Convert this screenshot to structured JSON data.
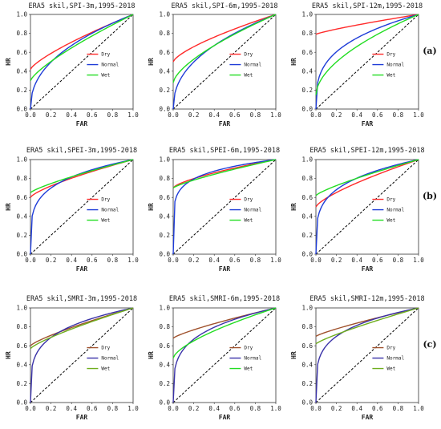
{
  "chart_data": [
    {
      "type": "line",
      "title": "ERA5 skil,SPI-3m,1995-2018",
      "xlabel": "FAR",
      "ylabel": "HR",
      "xlim": [
        0,
        1
      ],
      "ylim": [
        0,
        1
      ],
      "grid": false,
      "legend": "center-right",
      "series": [
        {
          "name": "Dry",
          "color": "#ff2a2a",
          "y0": 0.42,
          "k": 0.3
        },
        {
          "name": "Normal",
          "color": "#1e3cd8",
          "y0": 0.0,
          "k": 1.3
        },
        {
          "name": "Wet",
          "color": "#22dd22",
          "y0": 0.3,
          "k": 0.3
        }
      ]
    },
    {
      "type": "line",
      "title": "ERA5 skil,SPI-6m,1995-2018",
      "xlabel": "FAR",
      "ylabel": "HR",
      "xlim": [
        0,
        1
      ],
      "ylim": [
        0,
        1
      ],
      "grid": false,
      "legend": "center-right",
      "series": [
        {
          "name": "Dry",
          "color": "#ff2a2a",
          "y0": 0.5,
          "k": 0.4
        },
        {
          "name": "Normal",
          "color": "#1e3cd8",
          "y0": 0.0,
          "k": 1.3
        },
        {
          "name": "Wet",
          "color": "#22dd22",
          "y0": 0.28,
          "k": 0.5
        }
      ]
    },
    {
      "type": "line",
      "title": "ERA5 skil,SPI-12m,1995-2018",
      "xlabel": "FAR",
      "ylabel": "HR",
      "xlim": [
        0,
        1
      ],
      "ylim": [
        0,
        1
      ],
      "grid": false,
      "legend": "center-right",
      "series": [
        {
          "name": "Dry",
          "color": "#ff2a2a",
          "y0": 0.79,
          "k": 0.2
        },
        {
          "name": "Normal",
          "color": "#1e3cd8",
          "y0": 0.0,
          "k": 2.2
        },
        {
          "name": "Wet",
          "color": "#22dd22",
          "y0": 0.15,
          "k": 0.8
        }
      ]
    },
    {
      "type": "line",
      "title": "ERA5 skil,SPEI-3m,1995-2018",
      "xlabel": "FAR",
      "ylabel": "HR",
      "xlim": [
        0,
        1
      ],
      "ylim": [
        0,
        1
      ],
      "grid": false,
      "legend": "center-right",
      "series": [
        {
          "name": "Dry",
          "color": "#ff2a2a",
          "y0": 0.6,
          "k": 0.35
        },
        {
          "name": "Normal",
          "color": "#1e3cd8",
          "y0": 0.0,
          "k": 3.5
        },
        {
          "name": "Wet",
          "color": "#22dd22",
          "y0": 0.65,
          "k": 0.25
        }
      ]
    },
    {
      "type": "line",
      "title": "ERA5 skil,SPEI-6m,1995-2018",
      "xlabel": "FAR",
      "ylabel": "HR",
      "xlim": [
        0,
        1
      ],
      "ylim": [
        0,
        1
      ],
      "grid": false,
      "legend": "center-right",
      "series": [
        {
          "name": "Dry",
          "color": "#ff2a2a",
          "y0": 0.7,
          "k": 0.45
        },
        {
          "name": "Normal",
          "color": "#1e3cd8",
          "y0": 0.0,
          "k": 6.0
        },
        {
          "name": "Wet",
          "color": "#22dd22",
          "y0": 0.7,
          "k": 0.25
        }
      ]
    },
    {
      "type": "line",
      "title": "ERA5 skil,SPEI-12m,1995-2018",
      "xlabel": "FAR",
      "ylabel": "HR",
      "xlim": [
        0,
        1
      ],
      "ylim": [
        0,
        1
      ],
      "grid": false,
      "legend": "center-right",
      "series": [
        {
          "name": "Dry",
          "color": "#ff2a2a",
          "y0": 0.5,
          "k": 0.35
        },
        {
          "name": "Normal",
          "color": "#1e3cd8",
          "y0": 0.0,
          "k": 3.2
        },
        {
          "name": "Wet",
          "color": "#22dd22",
          "y0": 0.62,
          "k": 0.25
        }
      ]
    },
    {
      "type": "line",
      "title": "ERA5 skil,SMRI-3m,1995-2018",
      "xlabel": "FAR",
      "ylabel": "HR",
      "xlim": [
        0,
        1
      ],
      "ylim": [
        0,
        1
      ],
      "grid": false,
      "legend": "center-right",
      "series": [
        {
          "name": "Dry",
          "color": "#a0522d",
          "y0": 0.6,
          "k": 0.25
        },
        {
          "name": "Normal",
          "color": "#3a32a8",
          "y0": 0.0,
          "k": 3.3
        },
        {
          "name": "Wet",
          "color": "#6fae1e",
          "y0": 0.57,
          "k": 0.25
        }
      ]
    },
    {
      "type": "line",
      "title": "ERA5 skil,SMRI-6m,1995-2018",
      "xlabel": "FAR",
      "ylabel": "HR",
      "xlim": [
        0,
        1
      ],
      "ylim": [
        0,
        1
      ],
      "grid": false,
      "legend": "center-right",
      "series": [
        {
          "name": "Dry",
          "color": "#a0522d",
          "y0": 0.68,
          "k": 0.25
        },
        {
          "name": "Normal",
          "color": "#3a32a8",
          "y0": 0.0,
          "k": 3.0
        },
        {
          "name": "Wet",
          "color": "#22dd22",
          "y0": 0.47,
          "k": 0.5
        }
      ]
    },
    {
      "type": "line",
      "title": "ERA5 skil,SMRI-12m,1995-2018",
      "xlabel": "FAR",
      "ylabel": "HR",
      "xlim": [
        0,
        1
      ],
      "ylim": [
        0,
        1
      ],
      "grid": false,
      "legend": "center-right",
      "series": [
        {
          "name": "Dry",
          "color": "#a0522d",
          "y0": 0.7,
          "k": 0.2
        },
        {
          "name": "Normal",
          "color": "#3a32a8",
          "y0": 0.0,
          "k": 3.5
        },
        {
          "name": "Wet",
          "color": "#6fae1e",
          "y0": 0.62,
          "k": 0.2
        }
      ]
    }
  ],
  "ticks": [
    "0.0",
    "0.2",
    "0.4",
    "0.6",
    "0.8",
    "1.0"
  ],
  "row_labels": [
    "(a)",
    "(b)",
    "(c)"
  ],
  "diagonal_color": "#000000"
}
